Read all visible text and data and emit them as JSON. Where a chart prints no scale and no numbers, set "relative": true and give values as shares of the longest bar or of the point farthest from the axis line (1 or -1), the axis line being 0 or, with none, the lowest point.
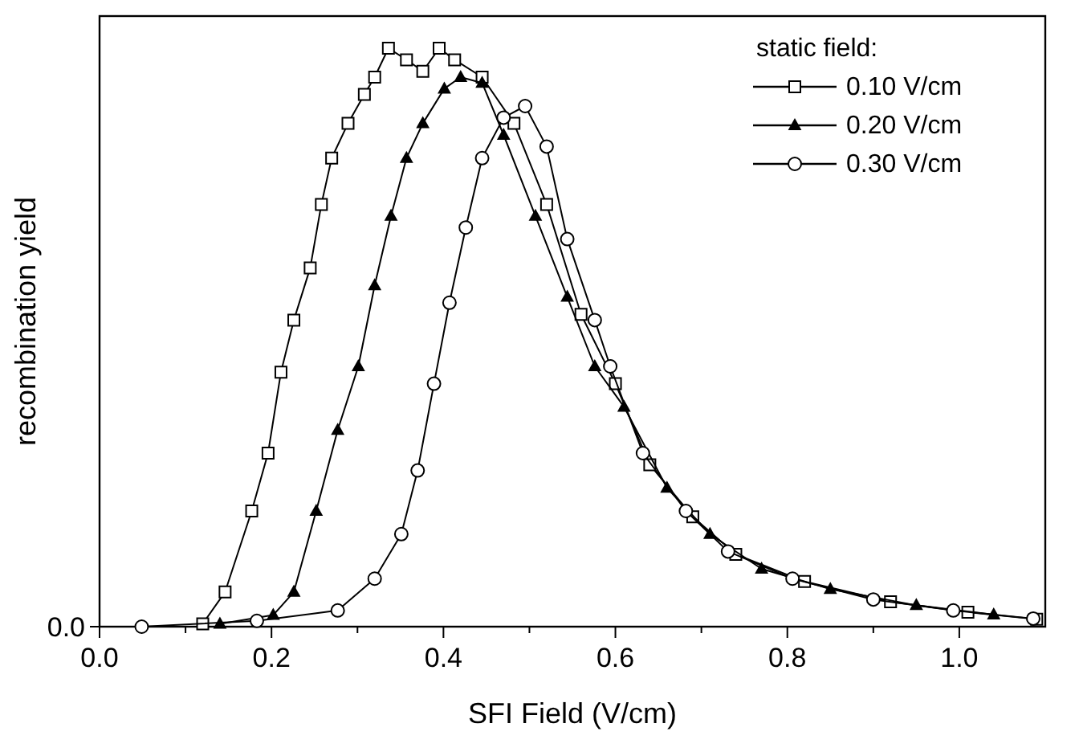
{
  "chart_data": {
    "type": "line",
    "relative": true,
    "xlabel": "SFI Field (V/cm)",
    "ylabel": "recombination yield",
    "legend_title": "static field:",
    "legend": "top right",
    "xlim": [
      0,
      1.1
    ],
    "xticks": [
      {
        "value": 0,
        "label": "0.0"
      },
      {
        "value": 0.1,
        "label": null
      },
      {
        "value": 0.2,
        "label": "0.2"
      },
      {
        "value": 0.3,
        "label": null
      },
      {
        "value": 0.4,
        "label": "0.4"
      },
      {
        "value": 0.5,
        "label": null
      },
      {
        "value": 0.6,
        "label": "0.6"
      },
      {
        "value": 0.7,
        "label": null
      },
      {
        "value": 0.8,
        "label": "0.8"
      },
      {
        "value": 0.9,
        "label": null
      },
      {
        "value": 1.0,
        "label": "1.0"
      }
    ],
    "annotations": [
      "0.0"
    ],
    "series": [
      {
        "name": "0.10 V/cm",
        "color": "#000000",
        "marker": "square",
        "x": [
          0.12,
          0.146,
          0.177,
          0.196,
          0.211,
          0.226,
          0.245,
          0.258,
          0.27,
          0.289,
          0.308,
          0.32,
          0.336,
          0.357,
          0.376,
          0.395,
          0.413,
          0.445,
          0.482,
          0.52,
          0.56,
          0.6,
          0.64,
          0.69,
          0.74,
          0.82,
          0.92,
          1.01,
          1.09
        ],
        "values": [
          0.005,
          0.06,
          0.2,
          0.3,
          0.44,
          0.53,
          0.62,
          0.73,
          0.81,
          0.87,
          0.92,
          0.95,
          1.0,
          0.98,
          0.96,
          1.0,
          0.98,
          0.95,
          0.87,
          0.73,
          0.54,
          0.42,
          0.28,
          0.19,
          0.125,
          0.078,
          0.043,
          0.025,
          0.013
        ]
      },
      {
        "name": "0.20 V/cm",
        "color": "#000000",
        "marker": "triangle",
        "x": [
          0.14,
          0.202,
          0.226,
          0.252,
          0.277,
          0.301,
          0.32,
          0.339,
          0.357,
          0.376,
          0.401,
          0.42,
          0.445,
          0.47,
          0.507,
          0.544,
          0.576,
          0.61,
          0.66,
          0.71,
          0.77,
          0.85,
          0.95,
          1.04
        ],
        "values": [
          0.005,
          0.02,
          0.06,
          0.2,
          0.34,
          0.45,
          0.59,
          0.71,
          0.81,
          0.87,
          0.93,
          0.95,
          0.94,
          0.85,
          0.71,
          0.57,
          0.45,
          0.38,
          0.24,
          0.16,
          0.1,
          0.065,
          0.037,
          0.021
        ]
      },
      {
        "name": "0.30 V/cm",
        "color": "#000000",
        "marker": "circle",
        "x": [
          0.049,
          0.183,
          0.277,
          0.32,
          0.351,
          0.37,
          0.389,
          0.407,
          0.426,
          0.445,
          0.47,
          0.495,
          0.52,
          0.544,
          0.576,
          0.594,
          0.632,
          0.682,
          0.731,
          0.806,
          0.9,
          0.993,
          1.086
        ],
        "values": [
          0,
          0.01,
          0.028,
          0.083,
          0.16,
          0.27,
          0.42,
          0.56,
          0.69,
          0.81,
          0.88,
          0.9,
          0.83,
          0.67,
          0.53,
          0.45,
          0.3,
          0.2,
          0.13,
          0.083,
          0.047,
          0.028,
          0.014
        ]
      }
    ]
  }
}
